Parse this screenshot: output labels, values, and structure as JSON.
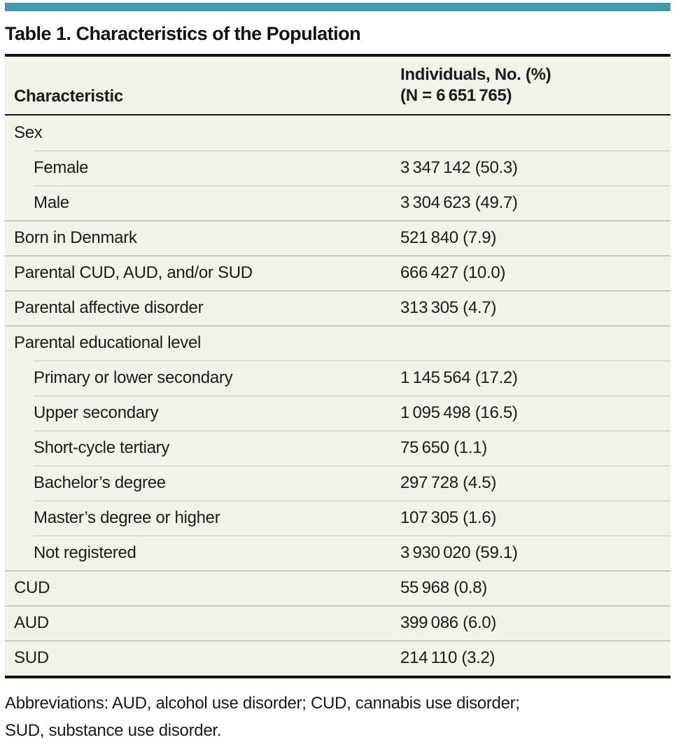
{
  "colors": {
    "accent_bar": "#4298ad",
    "row_background": "#f3f2e8",
    "rule_dark": "#141414"
  },
  "title": "Table 1. Characteristics of the Population",
  "table": {
    "col1_header": "Characteristic",
    "col2_header_line1": "Individuals, No. (%)",
    "col2_header_line2": "(N = 6 651 765)",
    "rows": [
      {
        "label": "Sex",
        "value": "",
        "indent": false
      },
      {
        "label": "Female",
        "value": "3 347 142 (50.3)",
        "indent": true
      },
      {
        "label": "Male",
        "value": "3 304 623 (49.7)",
        "indent": true
      },
      {
        "label": "Born in Denmark",
        "value": "521 840 (7.9)",
        "indent": false
      },
      {
        "label": "Parental CUD, AUD, and/or SUD",
        "value": "666 427 (10.0)",
        "indent": false
      },
      {
        "label": "Parental affective disorder",
        "value": "313 305 (4.7)",
        "indent": false
      },
      {
        "label": "Parental educational level",
        "value": "",
        "indent": false
      },
      {
        "label": "Primary or lower secondary",
        "value": "1 145 564 (17.2)",
        "indent": true
      },
      {
        "label": "Upper secondary",
        "value": "1 095 498 (16.5)",
        "indent": true
      },
      {
        "label": "Short-cycle tertiary",
        "value": "75 650 (1.1)",
        "indent": true
      },
      {
        "label": "Bachelor’s degree",
        "value": "297 728 (4.5)",
        "indent": true
      },
      {
        "label": "Master’s degree or higher",
        "value": "107 305 (1.6)",
        "indent": true
      },
      {
        "label": "Not registered",
        "value": "3 930 020 (59.1)",
        "indent": true
      },
      {
        "label": "CUD",
        "value": "55 968 (0.8)",
        "indent": false
      },
      {
        "label": "AUD",
        "value": "399 086 (6.0)",
        "indent": false
      },
      {
        "label": "SUD",
        "value": "214 110 (3.2)",
        "indent": false
      }
    ]
  },
  "footnote_lines": [
    "Abbreviations: AUD, alcohol use disorder; CUD, cannabis use disorder;",
    "SUD, substance use disorder."
  ]
}
